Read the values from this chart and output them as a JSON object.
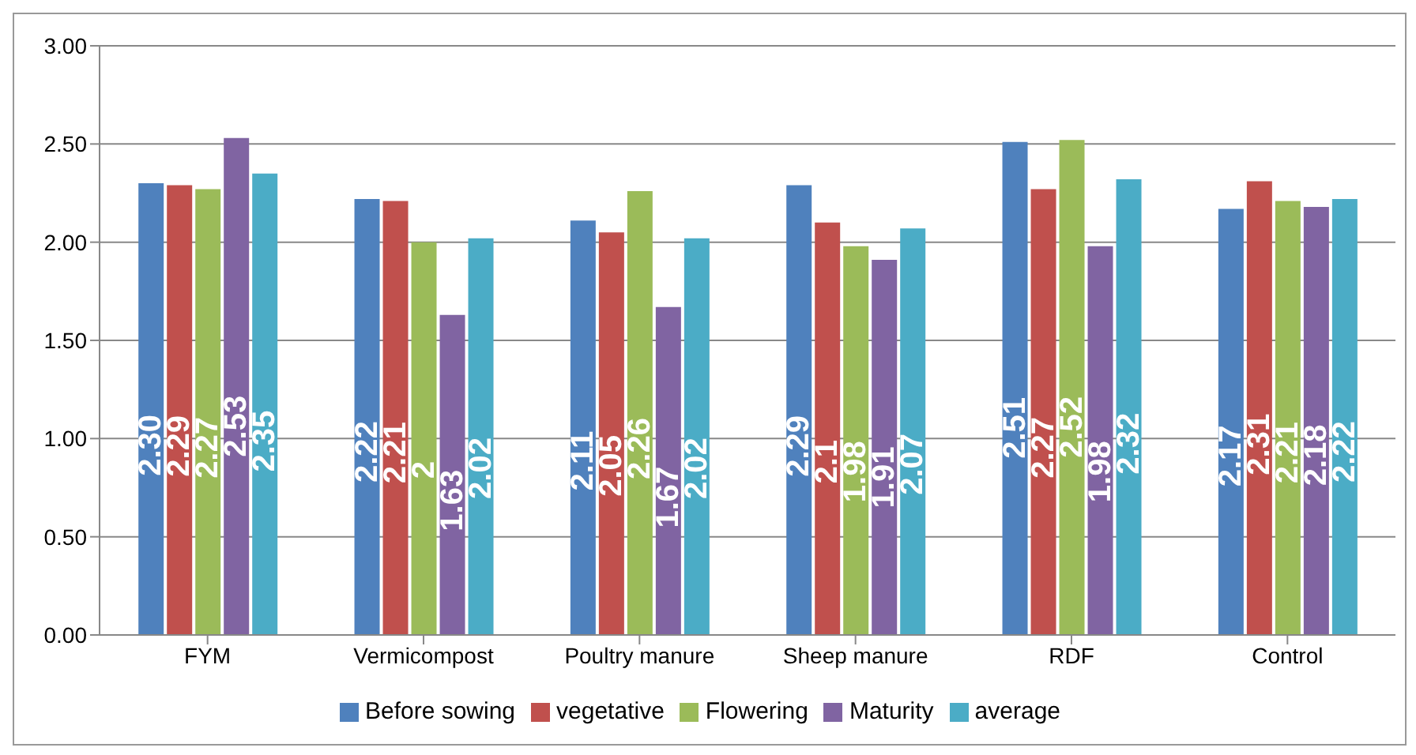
{
  "chart_data": {
    "type": "bar",
    "categories": [
      "FYM",
      "Vermicompost",
      "Poultry manure",
      "Sheep manure",
      "RDF",
      "Control"
    ],
    "series": [
      {
        "name": "Before sowing",
        "color": "#4f81bd",
        "values": [
          2.3,
          2.22,
          2.11,
          2.29,
          2.51,
          2.17
        ],
        "value_labels": [
          "2.30",
          "2.22",
          "2.11",
          "2.29",
          "2.51",
          "2.17"
        ]
      },
      {
        "name": "vegetative",
        "color": "#c0504d",
        "values": [
          2.29,
          2.21,
          2.05,
          2.1,
          2.27,
          2.31
        ],
        "value_labels": [
          "2.29",
          "2.21",
          "2.05",
          "2.1",
          "2.27",
          "2.31"
        ]
      },
      {
        "name": "Flowering",
        "color": "#9bbb59",
        "values": [
          2.27,
          2,
          2.26,
          1.98,
          2.52,
          2.21
        ],
        "value_labels": [
          "2.27",
          "2",
          "2.26",
          "1.98",
          "2.52",
          "2.21"
        ]
      },
      {
        "name": "Maturity",
        "color": "#8064a2",
        "values": [
          2.53,
          1.63,
          1.67,
          1.91,
          1.98,
          2.18
        ],
        "value_labels": [
          "2.53",
          "1.63",
          "1.67",
          "1.91",
          "1.98",
          "2.18"
        ]
      },
      {
        "name": "average",
        "color": "#4bacc6",
        "values": [
          2.35,
          2.02,
          2.02,
          2.07,
          2.32,
          2.22
        ],
        "value_labels": [
          "2.35",
          "2.02",
          "2.02",
          "2.07",
          "2.32",
          "2.22"
        ]
      }
    ],
    "ylim": [
      0,
      3
    ],
    "yticks": [
      {
        "value": 0,
        "label": "0.00"
      },
      {
        "value": 0.5,
        "label": "0.50"
      },
      {
        "value": 1,
        "label": "1.00"
      },
      {
        "value": 1.5,
        "label": "1.50"
      },
      {
        "value": 2,
        "label": "2.00"
      },
      {
        "value": 2.5,
        "label": "2.50"
      },
      {
        "value": 3,
        "label": "3.00"
      }
    ],
    "grid": "y",
    "legend": "bottom"
  }
}
